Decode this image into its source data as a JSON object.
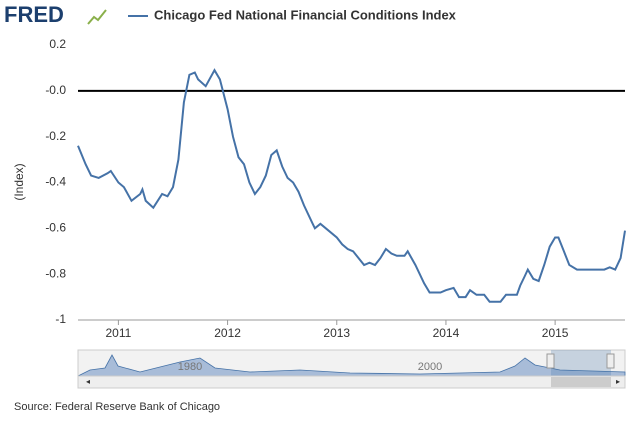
{
  "brand": "FRED",
  "chart_data": {
    "type": "line",
    "ylabel": "(Index)",
    "source": "Source: Federal Reserve Bank of Chicago",
    "series": [
      {
        "name": "Chicago Fed National Financial Conditions Index",
        "color": "#4572a7",
        "x": [
          2010.63,
          2010.7,
          2010.75,
          2010.82,
          2010.9,
          2010.93,
          2011.0,
          2011.05,
          2011.12,
          2011.2,
          2011.22,
          2011.25,
          2011.32,
          2011.4,
          2011.45,
          2011.5,
          2011.55,
          2011.6,
          2011.65,
          2011.7,
          2011.73,
          2011.8,
          2011.88,
          2011.93,
          2012.0,
          2012.05,
          2012.1,
          2012.15,
          2012.2,
          2012.25,
          2012.3,
          2012.35,
          2012.4,
          2012.45,
          2012.5,
          2012.55,
          2012.6,
          2012.65,
          2012.7,
          2012.78,
          2012.8,
          2012.85,
          2012.9,
          2013.0,
          2013.05,
          2013.1,
          2013.15,
          2013.25,
          2013.3,
          2013.35,
          2013.4,
          2013.45,
          2013.5,
          2013.55,
          2013.62,
          2013.65,
          2013.72,
          2013.8,
          2013.85,
          2013.95,
          2014.0,
          2014.07,
          2014.12,
          2014.18,
          2014.22,
          2014.28,
          2014.35,
          2014.4,
          2014.5,
          2014.55,
          2014.6,
          2014.65,
          2014.68,
          2014.72,
          2014.75,
          2014.8,
          2014.85,
          2014.9,
          2014.95,
          2015.0,
          2015.03,
          2015.08,
          2015.13,
          2015.2,
          2015.3,
          2015.45,
          2015.5,
          2015.55,
          2015.6,
          2015.64
        ],
        "values": [
          -0.24,
          -0.32,
          -0.37,
          -0.38,
          -0.36,
          -0.35,
          -0.4,
          -0.42,
          -0.48,
          -0.45,
          -0.43,
          -0.48,
          -0.51,
          -0.45,
          -0.46,
          -0.42,
          -0.3,
          -0.05,
          0.07,
          0.08,
          0.05,
          0.02,
          0.09,
          0.05,
          -0.08,
          -0.2,
          -0.29,
          -0.32,
          -0.4,
          -0.45,
          -0.42,
          -0.37,
          -0.28,
          -0.26,
          -0.33,
          -0.38,
          -0.4,
          -0.44,
          -0.5,
          -0.58,
          -0.6,
          -0.58,
          -0.6,
          -0.64,
          -0.67,
          -0.69,
          -0.7,
          -0.76,
          -0.75,
          -0.76,
          -0.73,
          -0.69,
          -0.71,
          -0.72,
          -0.72,
          -0.7,
          -0.76,
          -0.84,
          -0.88,
          -0.88,
          -0.87,
          -0.86,
          -0.9,
          -0.9,
          -0.87,
          -0.89,
          -0.89,
          -0.92,
          -0.92,
          -0.89,
          -0.89,
          -0.89,
          -0.85,
          -0.81,
          -0.78,
          -0.82,
          -0.83,
          -0.76,
          -0.68,
          -0.64,
          -0.64,
          -0.7,
          -0.76,
          -0.78,
          -0.78,
          -0.78,
          -0.77,
          -0.78,
          -0.73,
          -0.61
        ]
      }
    ],
    "xlim": [
      2010.63,
      2015.64
    ],
    "xticks": [
      2011,
      2012,
      2013,
      2014,
      2015
    ],
    "ylim": [
      -1.0,
      0.2
    ],
    "yticks": [
      0.2,
      {
        "value": 0,
        "label": "-0.0"
      },
      -0.2,
      -0.4,
      -0.6,
      -0.8,
      -1.0
    ],
    "grid": false,
    "navigator_labels": [
      "1980",
      "2000"
    ]
  }
}
